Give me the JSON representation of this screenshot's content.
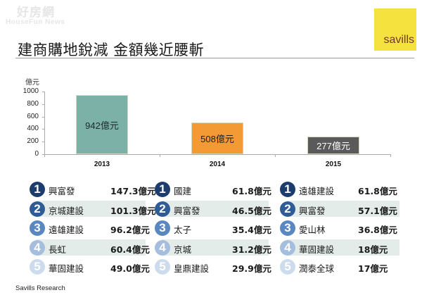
{
  "watermark": {
    "cn": "好房網",
    "en": "HouseFun News"
  },
  "header": {
    "title": "建商購地銳減 金額幾近腰斬",
    "logo_text": "savills",
    "logo_bg": "#f6e23e",
    "logo_fg": "#6d3a24"
  },
  "chart_data": {
    "type": "bar",
    "title": "建商購地銳減 金額幾近腰斬",
    "xlabel": "",
    "ylabel": "億元",
    "categories": [
      "2013",
      "2014",
      "2015"
    ],
    "values": [
      942,
      508,
      277
    ],
    "data_labels": [
      "942億元",
      "508億元",
      "277億元"
    ],
    "colors": [
      "#7bb1a6",
      "#f39a34",
      "#5a5a5a"
    ],
    "label_colors": [
      "#1e2a2a",
      "#1e1e1e",
      "#ffffff"
    ],
    "ylim": [
      0,
      1000
    ],
    "yticks": [
      "0",
      "200",
      "400",
      "600",
      "800",
      "1000"
    ],
    "grid": false,
    "legend": "none"
  },
  "rank_colors": [
    "#1c3c6e",
    "#2f5c95",
    "#5a87bf",
    "#a6bedd",
    "#cddcec"
  ],
  "rankings": [
    {
      "year": "2013",
      "items": [
        {
          "rank": "1",
          "name": "興富發",
          "value": "147.3億元"
        },
        {
          "rank": "2",
          "name": "京城建設",
          "value": "101.3億元"
        },
        {
          "rank": "3",
          "name": "遠雄建設",
          "value": "96.2億元"
        },
        {
          "rank": "4",
          "name": "長虹",
          "value": "60.4億元"
        },
        {
          "rank": "5",
          "name": "華固建設",
          "value": "49.0億元"
        }
      ]
    },
    {
      "year": "2014",
      "items": [
        {
          "rank": "1",
          "name": "國建",
          "value": "61.8億元"
        },
        {
          "rank": "2",
          "name": "興富發",
          "value": "46.5億元"
        },
        {
          "rank": "3",
          "name": "太子",
          "value": "35.4億元"
        },
        {
          "rank": "4",
          "name": "京城",
          "value": "31.2億元"
        },
        {
          "rank": "5",
          "name": "皇鼎建設",
          "value": "29.9億元"
        }
      ]
    },
    {
      "year": "2015",
      "items": [
        {
          "rank": "1",
          "name": "遠雄建設",
          "value": "61.8億元"
        },
        {
          "rank": "2",
          "name": "興富發",
          "value": "57.1億元"
        },
        {
          "rank": "3",
          "name": "愛山林",
          "value": "36.8億元"
        },
        {
          "rank": "4",
          "name": "華固建設",
          "value": "18億元"
        },
        {
          "rank": "5",
          "name": "潤泰全球",
          "value": "17億元"
        }
      ]
    }
  ],
  "footer": {
    "source": "Savills Research"
  }
}
